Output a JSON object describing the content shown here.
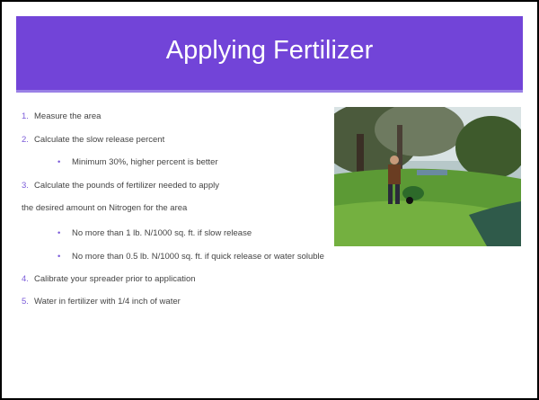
{
  "title": "Applying Fertilizer",
  "items": [
    {
      "number": "1.",
      "text": "Measure the area"
    },
    {
      "number": "2.",
      "text": "Calculate the slow release percent"
    },
    {
      "bullet": "•",
      "text": "Minimum 30%, higher percent is better"
    },
    {
      "number": "3.",
      "text": "Calculate the pounds of fertilizer needed to apply"
    },
    {
      "text": "the desired amount on Nitrogen for the area"
    },
    {
      "bullet": "•",
      "text": "No more than 1 lb. N/1000 sq. ft. if slow release"
    },
    {
      "bullet": "•",
      "text": "No more than 0.5 lb. N/1000 sq. ft. if quick release or water soluble"
    },
    {
      "number": "4.",
      "text": "Calibrate your spreader prior to application"
    },
    {
      "number": "5.",
      "text": "Water in fertilizer with 1/4 inch of water"
    }
  ]
}
